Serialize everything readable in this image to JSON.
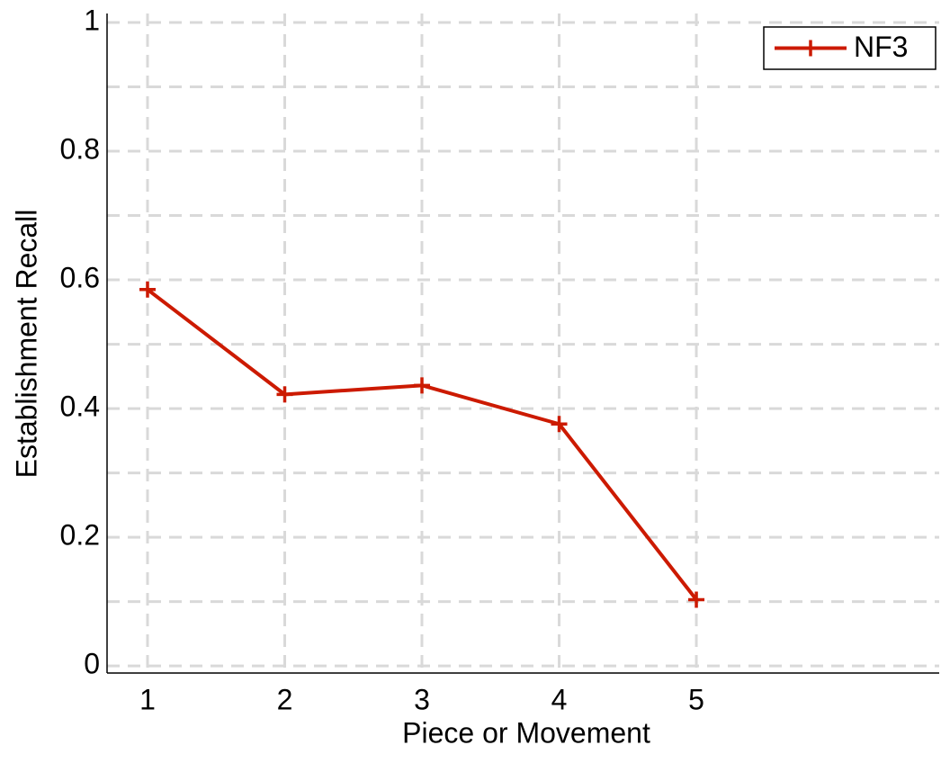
{
  "chart_data": {
    "type": "line",
    "x_label": "Piece or Movement",
    "y_label": "Establishment Recall",
    "x": [
      1,
      2,
      3,
      4,
      5
    ],
    "series": [
      {
        "name": "NF3",
        "color": "#cc1a00",
        "values": [
          0.585,
          0.422,
          0.436,
          0.376,
          0.103
        ]
      }
    ],
    "xlim": [
      0.705,
      6.77
    ],
    "ylim": [
      -0.011,
      1.014
    ],
    "xticks": [
      1,
      2,
      3,
      4,
      5
    ],
    "yticks": [
      0,
      0.2,
      0.4,
      0.6,
      0.8,
      1
    ],
    "y_minor_ticks": [
      0.1,
      0.3,
      0.5,
      0.7,
      0.9
    ],
    "grid": true,
    "legend": "upper-right"
  }
}
